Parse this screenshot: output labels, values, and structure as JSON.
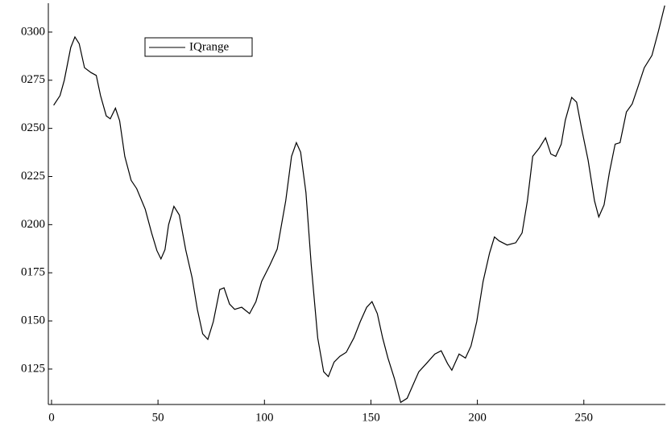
{
  "chart_data": {
    "type": "line",
    "x": [
      1,
      4,
      6,
      9,
      11,
      13,
      15.5,
      18.5,
      21,
      23,
      25.7,
      27.6,
      30,
      32,
      34.4,
      37.4,
      40,
      44,
      47,
      49.5,
      51.4,
      53.3,
      55,
      57.5,
      60,
      63,
      66,
      68.5,
      71,
      73.4,
      76,
      79,
      81,
      83.6,
      86,
      89.3,
      93,
      96,
      98.7,
      102.5,
      106,
      110,
      112.7,
      115,
      117,
      119.5,
      122,
      125,
      127.8,
      130,
      132.7,
      135.4,
      138.4,
      142,
      145,
      148,
      150.5,
      153,
      155.5,
      158,
      161,
      164,
      167,
      169.5,
      172.5,
      176,
      180,
      183,
      186,
      188,
      191.4,
      194.4,
      197,
      199.7,
      202.7,
      205.7,
      208,
      210.3,
      214,
      218,
      221,
      223.5,
      226,
      229,
      232,
      234.5,
      236.8,
      239.4,
      241.3,
      244.3,
      246.6,
      248.9,
      252,
      255,
      257,
      259.5,
      262,
      264.7,
      267,
      270,
      272.7,
      275.3,
      278.4,
      282,
      285,
      288
    ],
    "series": [
      {
        "name": "IQrange",
        "color": "#000000",
        "values": [
          0.262,
          0.267,
          0.275,
          0.292,
          0.2975,
          0.294,
          0.2815,
          0.279,
          0.2775,
          0.267,
          0.2565,
          0.255,
          0.2605,
          0.254,
          0.2355,
          0.223,
          0.2187,
          0.208,
          0.1957,
          0.1865,
          0.1822,
          0.187,
          0.2,
          0.2095,
          0.205,
          0.187,
          0.1726,
          0.156,
          0.1433,
          0.1404,
          0.1496,
          0.1663,
          0.1672,
          0.1588,
          0.156,
          0.1571,
          0.1538,
          0.16,
          0.1705,
          0.1789,
          0.1873,
          0.2124,
          0.2355,
          0.2426,
          0.2376,
          0.2166,
          0.1789,
          0.1412,
          0.1236,
          0.1211,
          0.1286,
          0.1316,
          0.1337,
          0.1412,
          0.1496,
          0.1571,
          0.16,
          0.1538,
          0.1412,
          0.1307,
          0.1202,
          0.1077,
          0.1098,
          0.1161,
          0.1236,
          0.1278,
          0.1328,
          0.1345,
          0.1278,
          0.1244,
          0.1328,
          0.1307,
          0.137,
          0.1496,
          0.1705,
          0.1852,
          0.1936,
          0.1915,
          0.1894,
          0.1906,
          0.1957,
          0.2124,
          0.2355,
          0.2397,
          0.2451,
          0.2367,
          0.2355,
          0.2418,
          0.2543,
          0.2661,
          0.2636,
          0.2501,
          0.2334,
          0.2124,
          0.204,
          0.2103,
          0.2271,
          0.2418,
          0.2426,
          0.2585,
          0.2627,
          0.2711,
          0.2815,
          0.2879,
          0.3004,
          0.3138
        ]
      }
    ],
    "xlim": [
      -1.5,
      288.3
    ],
    "xticks": [
      0,
      50,
      100,
      150,
      200,
      250
    ],
    "ylim": [
      0.1066,
      0.315
    ],
    "yticks": [
      {
        "value": 0.125,
        "label": "0125"
      },
      {
        "value": 0.15,
        "label": "0150"
      },
      {
        "value": 0.175,
        "label": "0175"
      },
      {
        "value": 0.2,
        "label": "0200"
      },
      {
        "value": 0.225,
        "label": "0225"
      },
      {
        "value": 0.25,
        "label": "0250"
      },
      {
        "value": 0.275,
        "label": "0275"
      },
      {
        "value": 0.3,
        "label": "0300"
      }
    ],
    "legend": "upper-left"
  }
}
